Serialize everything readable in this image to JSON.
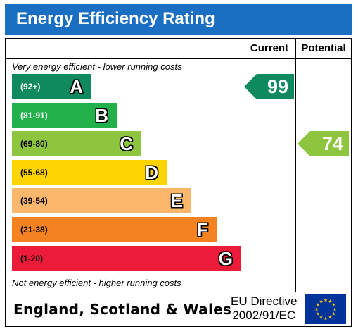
{
  "header": {
    "title": "Energy Efficiency Rating"
  },
  "columns": {
    "current": "Current",
    "potential": "Potential"
  },
  "notes": {
    "top": "Very energy efficient - lower running costs",
    "bottom": "Not energy efficient - higher running costs"
  },
  "chart_data": {
    "type": "bar",
    "title": "Energy Efficiency Rating",
    "bands": [
      {
        "letter": "A",
        "range": "(92+)",
        "color": "#0f8a5f",
        "range_color": "#ffffff"
      },
      {
        "letter": "B",
        "range": "(81-91)",
        "color": "#22b04b",
        "range_color": "#ffffff"
      },
      {
        "letter": "C",
        "range": "(69-80)",
        "color": "#8dc53e",
        "range_color": "#000000"
      },
      {
        "letter": "D",
        "range": "(55-68)",
        "color": "#ffd400",
        "range_color": "#000000"
      },
      {
        "letter": "E",
        "range": "(39-54)",
        "color": "#fbb76c",
        "range_color": "#000000"
      },
      {
        "letter": "F",
        "range": "(21-38)",
        "color": "#f58220",
        "range_color": "#000000"
      },
      {
        "letter": "G",
        "range": "(1-20)",
        "color": "#ed1b3a",
        "range_color": "#000000"
      }
    ],
    "current": {
      "value": "99",
      "band": "A",
      "color": "#0f8a5f"
    },
    "potential": {
      "value": "74",
      "band": "C",
      "color": "#8dc53e"
    }
  },
  "footer": {
    "country": "England, Scotland & Wales",
    "directive_line1": "EU Directive",
    "directive_line2": "2002/91/EC",
    "flag_color": "#003399",
    "star_color": "#ffcc00"
  }
}
